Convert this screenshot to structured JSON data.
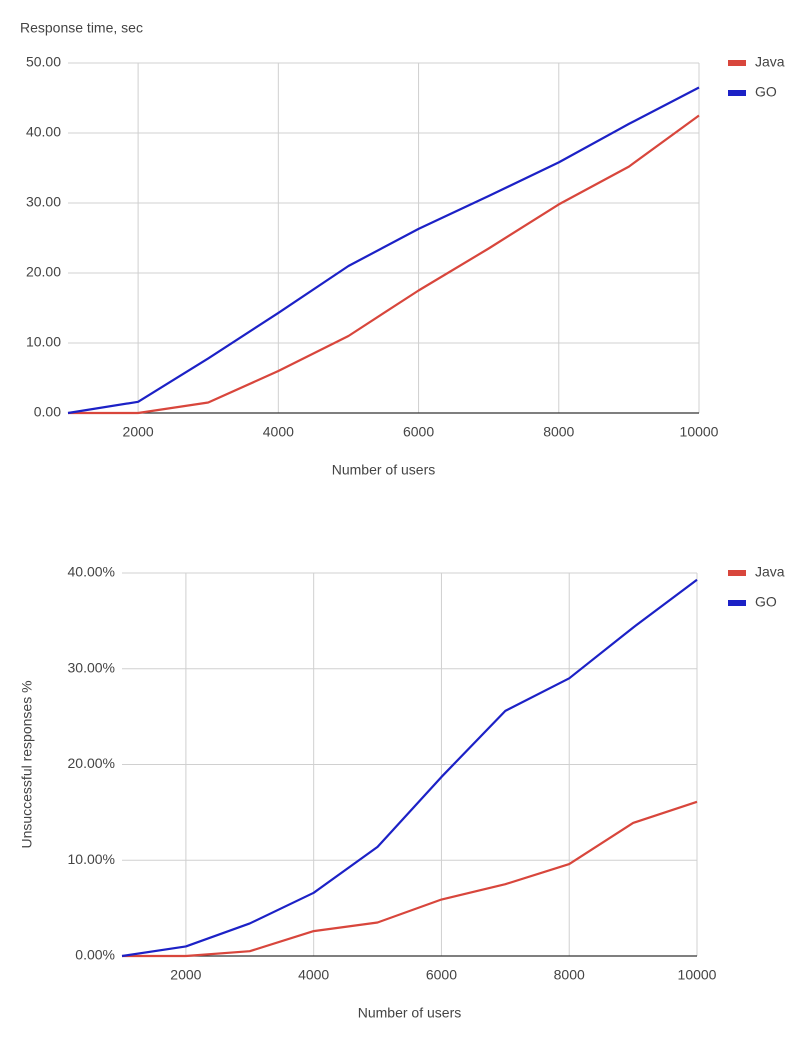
{
  "chart_data": [
    {
      "type": "line",
      "ylabel": "Response time, sec",
      "xlabel": "Number of users",
      "x": [
        1000,
        2000,
        3000,
        4000,
        5000,
        6000,
        7000,
        8000,
        9000,
        10000
      ],
      "series": [
        {
          "name": "Java",
          "color": "#d8463c",
          "values": [
            0,
            0,
            1.5,
            6,
            11,
            17.5,
            23.5,
            29.8,
            35.2,
            42.5
          ]
        },
        {
          "name": "GO",
          "color": "#1c21c6",
          "values": [
            0,
            1.6,
            7.8,
            14.3,
            21,
            26.3,
            31,
            35.8,
            41.3,
            46.5
          ]
        }
      ],
      "xlim": [
        1000,
        10000
      ],
      "xticks": [
        2000,
        4000,
        6000,
        8000,
        10000
      ],
      "ylim": [
        0,
        50
      ],
      "yticks": [
        {
          "value": 0,
          "label": "0.00"
        },
        {
          "value": 10,
          "label": "10.00"
        },
        {
          "value": 20,
          "label": "20.00"
        },
        {
          "value": 30,
          "label": "30.00"
        },
        {
          "value": 40,
          "label": "40.00"
        },
        {
          "value": 50,
          "label": "50.00"
        }
      ],
      "grid": true,
      "legend": "top-right"
    },
    {
      "type": "line",
      "ylabel": "Unsuccessful responses %",
      "xlabel": "Number of users",
      "x": [
        1000,
        2000,
        3000,
        4000,
        5000,
        6000,
        7000,
        8000,
        9000,
        10000
      ],
      "series": [
        {
          "name": "Java",
          "color": "#d8463c",
          "values": [
            0,
            0,
            0.5,
            2.6,
            3.5,
            5.9,
            7.5,
            9.6,
            13.9,
            16.1
          ]
        },
        {
          "name": "GO",
          "color": "#1c21c6",
          "values": [
            0,
            1.0,
            3.4,
            6.6,
            11.4,
            18.7,
            25.6,
            29.0,
            34.3,
            39.3
          ]
        }
      ],
      "xlim": [
        1000,
        10000
      ],
      "xticks": [
        2000,
        4000,
        6000,
        8000,
        10000
      ],
      "ylim": [
        0,
        40
      ],
      "yticks": [
        {
          "value": 0,
          "label": "0.00%"
        },
        {
          "value": 10,
          "label": "10.00%"
        },
        {
          "value": 20,
          "label": "20.00%"
        },
        {
          "value": 30,
          "label": "30.00%"
        },
        {
          "value": 40,
          "label": "40.00%"
        }
      ],
      "grid": true,
      "legend": "top-right"
    }
  ]
}
